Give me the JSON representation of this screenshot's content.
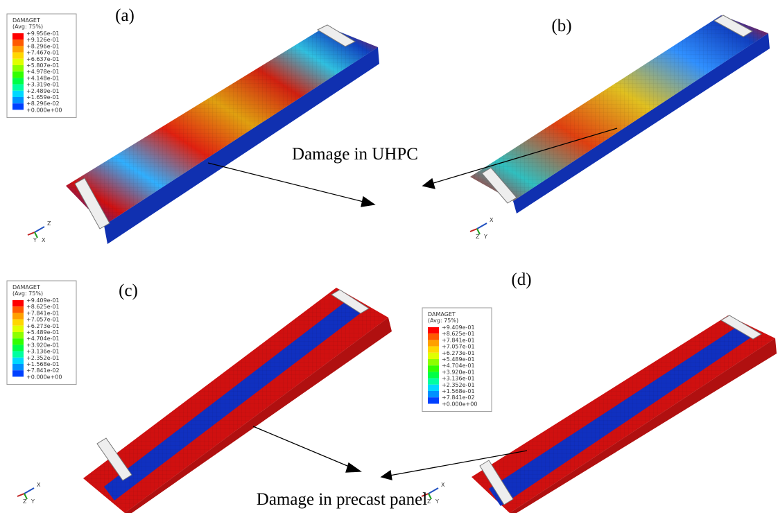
{
  "panels": [
    {
      "label": "(a)",
      "legend": {
        "title": "DAMAGET",
        "subtitle": "(Avg: 75%)",
        "values": [
          "+9.956e-01",
          "+9.126e-01",
          "+8.296e-01",
          "+7.467e-01",
          "+6.637e-01",
          "+5.807e-01",
          "+4.978e-01",
          "+4.148e-01",
          "+3.319e-01",
          "+2.489e-01",
          "+1.659e-01",
          "+8.296e-02",
          "+0.000e+00"
        ]
      },
      "triad": [
        "Z",
        "Y",
        "X"
      ]
    },
    {
      "label": "(b)",
      "triad": [
        "X",
        "Z",
        "Y"
      ]
    },
    {
      "label": "(c)",
      "legend": {
        "title": "DAMAGET",
        "subtitle": "(Avg: 75%)",
        "values": [
          "+9.409e-01",
          "+8.625e-01",
          "+7.841e-01",
          "+7.057e-01",
          "+6.273e-01",
          "+5.489e-01",
          "+4.704e-01",
          "+3.920e-01",
          "+3.136e-01",
          "+2.352e-01",
          "+1.568e-01",
          "+7.841e-02",
          "+0.000e+00"
        ]
      },
      "triad": [
        "X",
        "Z",
        "Y"
      ]
    },
    {
      "label": "(d)",
      "legend": {
        "title": "DAMAGET",
        "subtitle": "(Avg: 75%)",
        "values": [
          "+9.409e-01",
          "+8.625e-01",
          "+7.841e-01",
          "+7.057e-01",
          "+6.273e-01",
          "+5.489e-01",
          "+4.704e-01",
          "+3.920e-01",
          "+3.136e-01",
          "+2.352e-01",
          "+1.568e-01",
          "+7.841e-02",
          "+0.000e+00"
        ]
      },
      "triad": [
        "X",
        "Z",
        "Y"
      ]
    }
  ],
  "annotations": [
    "Damage in UHPC",
    "Damage in precast panel"
  ]
}
